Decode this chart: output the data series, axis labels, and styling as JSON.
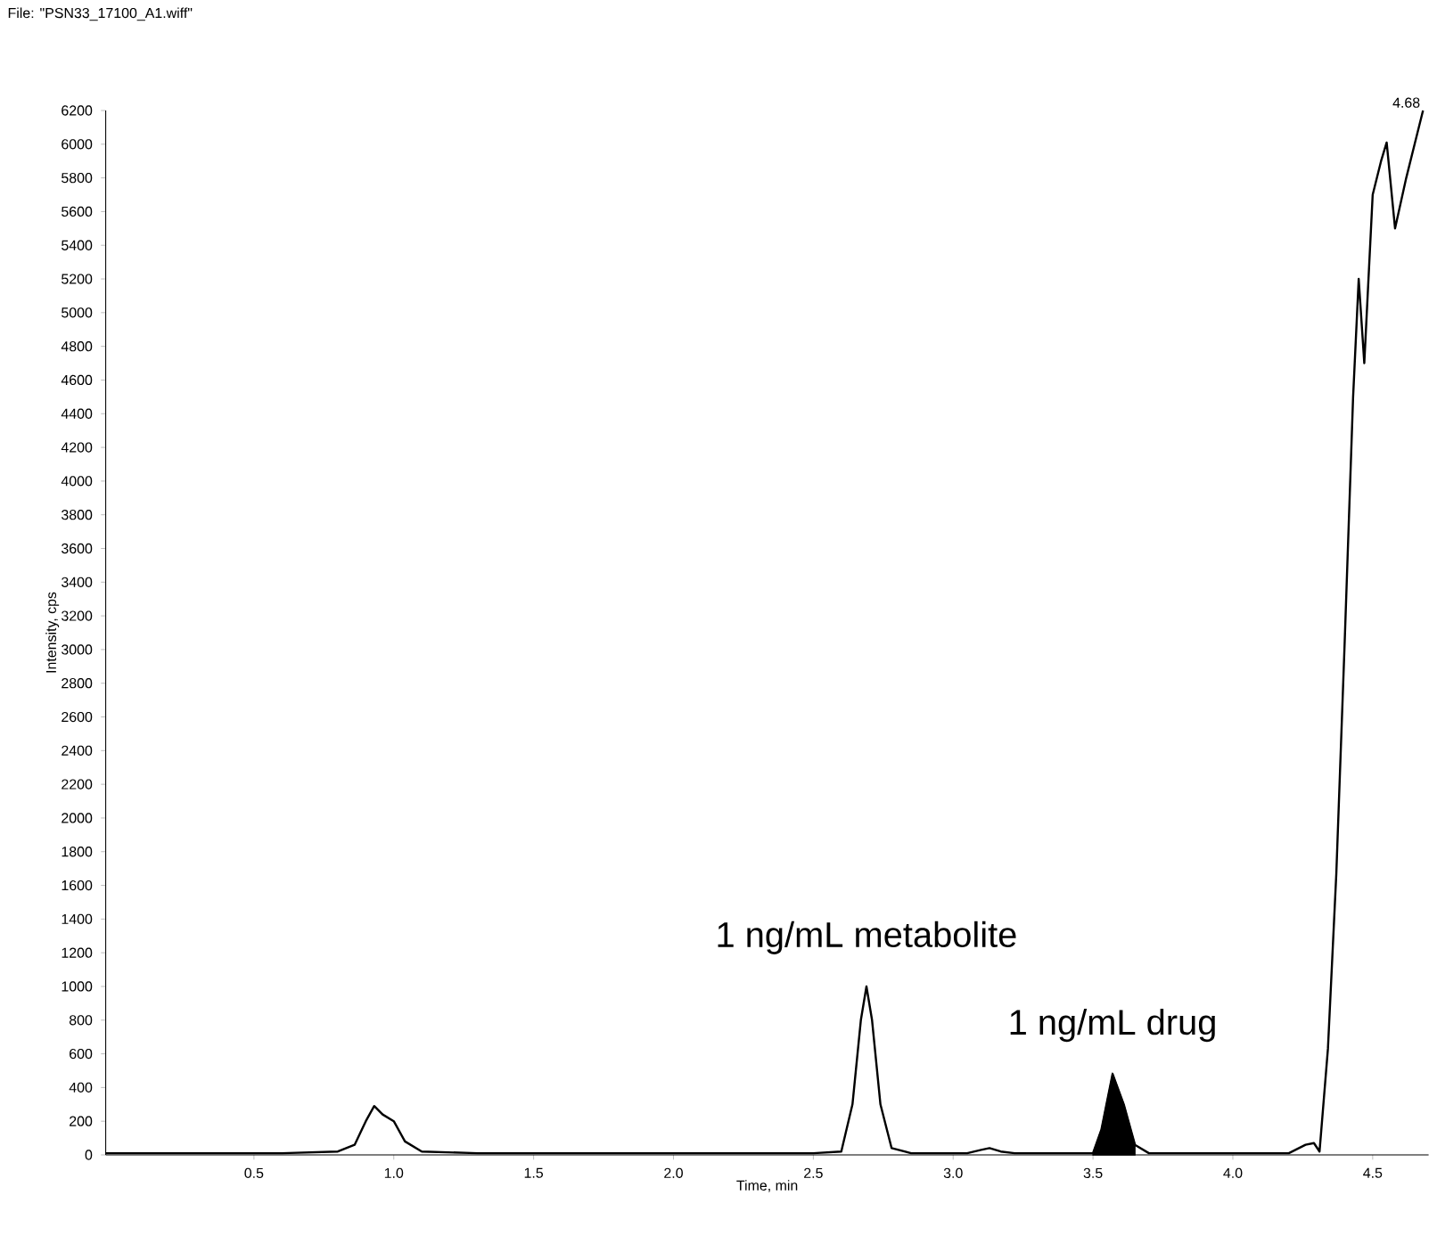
{
  "chart_data": {
    "type": "line",
    "xlabel": "Time, min",
    "ylabel": "Intensity, cps",
    "annotations": [
      "File: \"PSN33_17100_A1.wiff\"",
      {
        "text": "1 ng/mL metabolite",
        "x": 2.69,
        "y": 1000
      },
      {
        "text": "1 ng/mL drug",
        "x": 3.57,
        "y": 480
      },
      {
        "text": "4.68",
        "x": 4.68,
        "y": 6200
      }
    ],
    "xlim": [
      -0.03,
      4.7
    ],
    "ylim": [
      0,
      6200
    ],
    "xticks": [
      0.5,
      {
        "value": 1,
        "label": "1.0"
      },
      1.5,
      {
        "value": 2,
        "label": "2.0"
      },
      2.5,
      {
        "value": 3,
        "label": "3.0"
      },
      3.5,
      {
        "value": 4,
        "label": "4.0"
      },
      4.5
    ],
    "yticks": [
      0,
      200,
      400,
      600,
      800,
      1000,
      1200,
      1400,
      1600,
      1800,
      2000,
      2200,
      2400,
      2600,
      2800,
      3000,
      3200,
      3400,
      3600,
      3800,
      4000,
      4200,
      4400,
      4600,
      4800,
      5000,
      5200,
      5400,
      5600,
      5800,
      6000,
      6200
    ],
    "marker": "none",
    "line_style": "solid",
    "grid": false,
    "series": [
      {
        "color": "#000000",
        "x": [
          -0.03,
          0.3,
          0.6,
          0.8,
          0.86,
          0.9,
          0.93,
          0.96,
          1.0,
          1.04,
          1.1,
          1.3,
          1.6,
          1.9,
          2.2,
          2.5,
          2.6,
          2.64,
          2.67,
          2.69,
          2.71,
          2.74,
          2.78,
          2.85,
          3.05,
          3.1,
          3.13,
          3.17,
          3.22,
          3.4,
          3.5,
          3.53,
          3.57,
          3.61,
          3.65,
          3.7,
          3.9,
          4.2,
          4.26,
          4.29,
          4.31,
          4.34,
          4.37,
          4.4,
          4.43,
          4.45,
          4.47,
          4.5,
          4.53,
          4.55,
          4.58,
          4.62,
          4.65,
          4.68
        ],
        "values": [
          10,
          10,
          10,
          20,
          60,
          200,
          290,
          240,
          200,
          80,
          20,
          10,
          10,
          10,
          10,
          10,
          20,
          300,
          800,
          1000,
          800,
          300,
          40,
          10,
          10,
          30,
          40,
          20,
          10,
          10,
          10,
          150,
          480,
          300,
          60,
          10,
          10,
          10,
          60,
          70,
          20,
          630,
          1670,
          3050,
          4500,
          5200,
          4700,
          5700,
          5900,
          6010,
          5500,
          5800,
          6000,
          6200
        ]
      },
      {
        "type": "area",
        "color": "#000000",
        "x": [
          3.5,
          3.53,
          3.57,
          3.61,
          3.65
        ],
        "values": [
          10,
          150,
          480,
          300,
          60
        ]
      }
    ]
  }
}
